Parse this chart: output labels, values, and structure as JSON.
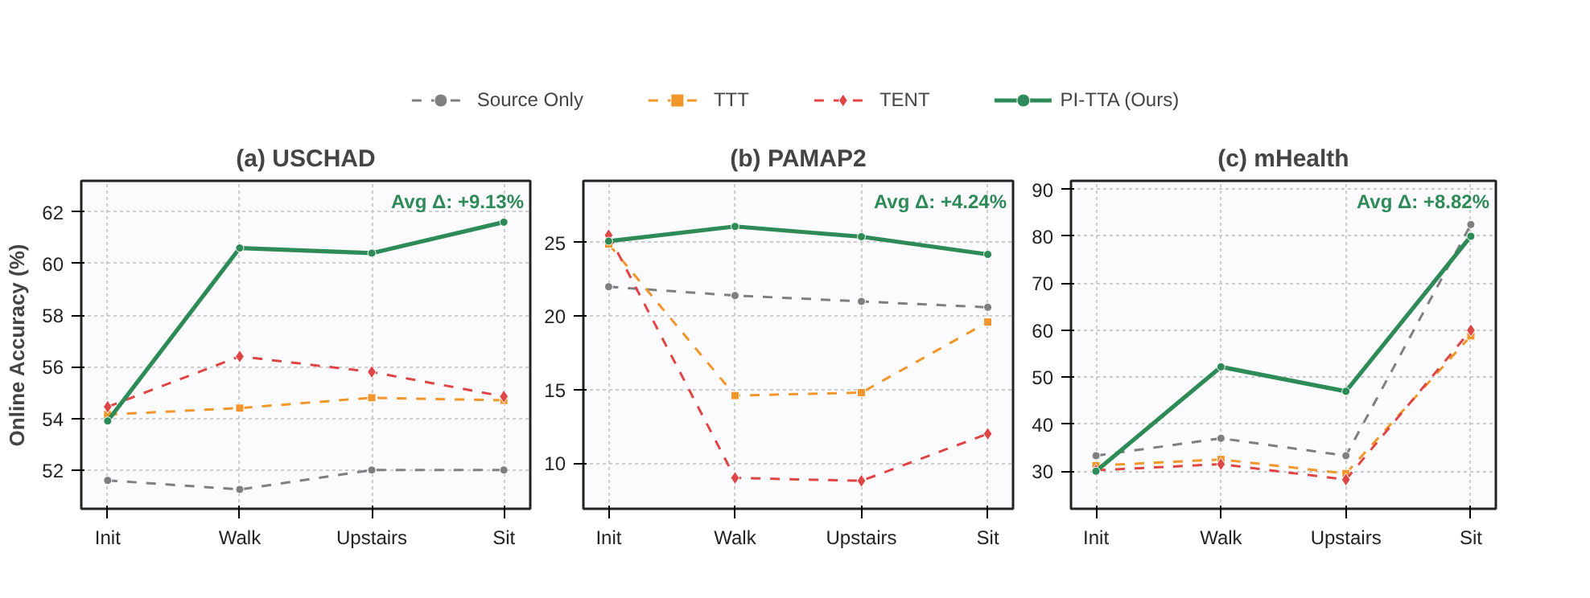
{
  "chart_data": [
    {
      "type": "line",
      "title": "(a) USCHAD",
      "ylabel": "Online Accuracy (%)",
      "categories": [
        "Init",
        "Walk",
        "Upstairs",
        "Sit"
      ],
      "ylim": [
        50.5,
        63.2
      ],
      "yticks": [
        52,
        54,
        56,
        58,
        60,
        62
      ],
      "grid": true,
      "legend": "top",
      "annotations": [
        "Avg Δ: +9.13%"
      ],
      "series": [
        {
          "name": "Source Only",
          "color": "#7f7f7f",
          "marker": "circle",
          "line_style": "dashed",
          "values": [
            51.6,
            51.25,
            52.0,
            52.0
          ]
        },
        {
          "name": "TTT",
          "color": "#f0962a",
          "marker": "square",
          "line_style": "dashed",
          "values": [
            54.15,
            54.4,
            54.8,
            54.7
          ]
        },
        {
          "name": "TENT",
          "color": "#e04545",
          "marker": "diamond",
          "line_style": "dashed",
          "values": [
            54.45,
            56.4,
            55.8,
            54.85
          ]
        },
        {
          "name": "PI-TTA (Ours)",
          "color": "#2e8b57",
          "marker": "circle",
          "line_style": "solid",
          "values": [
            53.9,
            60.6,
            60.4,
            61.6
          ]
        }
      ]
    },
    {
      "type": "line",
      "title": "(b) PAMAP2",
      "categories": [
        "Init",
        "Walk",
        "Upstairs",
        "Sit"
      ],
      "ylim": [
        6.9,
        29.2
      ],
      "yticks": [
        10,
        15,
        20,
        25
      ],
      "grid": true,
      "annotations": [
        "Avg Δ: +4.24%"
      ],
      "series": [
        {
          "color": "#7f7f7f",
          "marker": "circle",
          "line_style": "dashed",
          "values": [
            22.0,
            21.4,
            21.0,
            20.6
          ]
        },
        {
          "color": "#f0962a",
          "marker": "square",
          "line_style": "dashed",
          "values": [
            24.9,
            14.6,
            14.8,
            19.6
          ]
        },
        {
          "color": "#e04545",
          "marker": "diamond",
          "line_style": "dashed",
          "values": [
            25.5,
            9.0,
            8.8,
            12.0
          ]
        },
        {
          "color": "#2e8b57",
          "marker": "circle",
          "line_style": "solid",
          "values": [
            25.1,
            26.1,
            25.4,
            24.2
          ]
        }
      ]
    },
    {
      "type": "line",
      "title": "(c) mHealth",
      "categories": [
        "Init",
        "Walk",
        "Upstairs",
        "Sit"
      ],
      "ylim": [
        22,
        91.8
      ],
      "yticks": [
        30,
        40,
        50,
        60,
        70,
        80,
        90
      ],
      "grid": true,
      "annotations": [
        "Avg Δ: +8.82%"
      ],
      "series": [
        {
          "color": "#7f7f7f",
          "marker": "circle",
          "line_style": "dashed",
          "values": [
            33.3,
            37.0,
            33.3,
            82.5
          ]
        },
        {
          "color": "#f0962a",
          "marker": "square",
          "line_style": "dashed",
          "values": [
            31.2,
            32.5,
            29.5,
            58.8
          ]
        },
        {
          "color": "#e04545",
          "marker": "diamond",
          "line_style": "dashed",
          "values": [
            30.2,
            31.5,
            28.2,
            60.0
          ]
        },
        {
          "color": "#2e8b57",
          "marker": "circle",
          "line_style": "solid",
          "values": [
            30.0,
            52.2,
            47.0,
            80.0
          ]
        }
      ]
    }
  ]
}
